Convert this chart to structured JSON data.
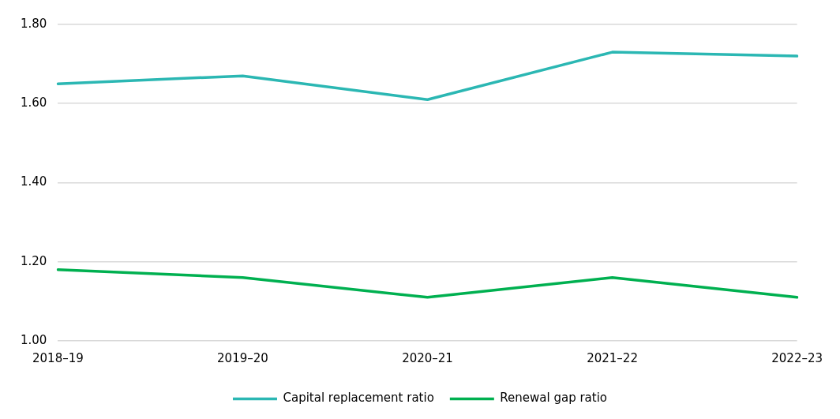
{
  "chart_data": {
    "type": "line",
    "categories": [
      "2018–19",
      "2019–20",
      "2020–21",
      "2021–22",
      "2022–23"
    ],
    "series": [
      {
        "name": "Capital replacement ratio",
        "color": "#2bb7b3",
        "values": [
          1.65,
          1.67,
          1.61,
          1.73,
          1.72
        ]
      },
      {
        "name": "Renewal gap ratio",
        "color": "#00b050",
        "values": [
          1.18,
          1.16,
          1.11,
          1.16,
          1.11
        ]
      }
    ],
    "ylim": [
      1.0,
      1.8
    ],
    "yticks": [
      {
        "value": 1.0,
        "label": "1.00"
      },
      {
        "value": 1.2,
        "label": "1.20"
      },
      {
        "value": 1.4,
        "label": "1.40"
      },
      {
        "value": 1.6,
        "label": "1.60"
      },
      {
        "value": 1.8,
        "label": "1.80"
      }
    ],
    "grid": "y",
    "legend": "bottom",
    "marker": "none",
    "line_style": "solid"
  }
}
